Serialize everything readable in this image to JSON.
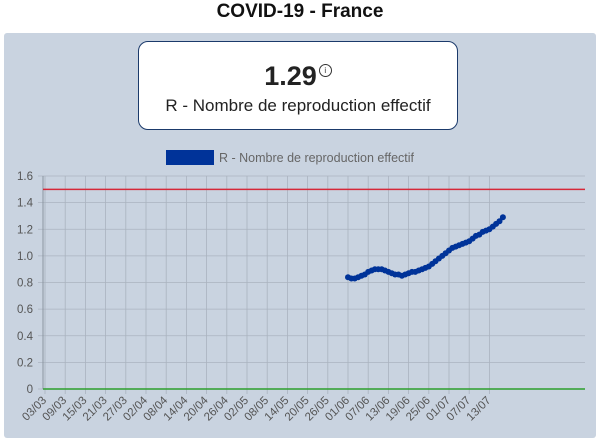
{
  "page": {
    "title": "COVID-19 - France"
  },
  "kpi": {
    "value": "1.29",
    "info_icon": "info-icon",
    "label": "R - Nombre de reproduction effectif"
  },
  "colors": {
    "panel_bg": "#c9d3e0",
    "series": "#003399",
    "threshold": "#d62839",
    "baseline": "#2ca02c",
    "grid": "#aab3bf"
  },
  "chart_data": {
    "type": "line",
    "title": "",
    "xlabel": "",
    "ylabel": "",
    "ylim": [
      0,
      1.6
    ],
    "yticks": [
      "0",
      "0.2",
      "0.4",
      "0.6",
      "0.8",
      "1.0",
      "1.2",
      "1.4",
      "1.6"
    ],
    "yticks_values": [
      0,
      0.2,
      0.4,
      0.6,
      0.8,
      1.0,
      1.2,
      1.4,
      1.6
    ],
    "xticks": [
      "03/03",
      "09/03",
      "15/03",
      "21/03",
      "27/03",
      "02/04",
      "08/04",
      "14/04",
      "20/04",
      "26/04",
      "02/05",
      "08/05",
      "14/05",
      "20/05",
      "26/05",
      "01/06",
      "07/06",
      "13/06",
      "19/06",
      "25/06",
      "01/07",
      "07/07",
      "13/07"
    ],
    "legend": "top",
    "grid": true,
    "reference_lines": [
      {
        "y": 1.5,
        "color": "#d62839"
      },
      {
        "y": 0,
        "color": "#2ca02c"
      }
    ],
    "series": [
      {
        "name": "R - Nombre de reproduction effectif",
        "color": "#003399",
        "x": [
          "01/06",
          "02/06",
          "03/06",
          "04/06",
          "05/06",
          "06/06",
          "07/06",
          "08/06",
          "09/06",
          "10/06",
          "11/06",
          "12/06",
          "13/06",
          "14/06",
          "15/06",
          "16/06",
          "17/06",
          "18/06",
          "19/06",
          "20/06",
          "21/06",
          "22/06",
          "23/06",
          "24/06",
          "25/06",
          "26/06",
          "27/06",
          "28/06",
          "29/06",
          "30/06",
          "01/07",
          "02/07",
          "03/07",
          "04/07",
          "05/07",
          "06/07",
          "07/07",
          "08/07",
          "09/07",
          "10/07",
          "11/07",
          "12/07",
          "13/07",
          "14/07",
          "15/07",
          "16/07",
          "17/07"
        ],
        "values": [
          0.84,
          0.83,
          0.83,
          0.84,
          0.85,
          0.86,
          0.88,
          0.89,
          0.9,
          0.9,
          0.9,
          0.89,
          0.88,
          0.87,
          0.86,
          0.86,
          0.85,
          0.86,
          0.87,
          0.88,
          0.88,
          0.89,
          0.9,
          0.91,
          0.92,
          0.94,
          0.96,
          0.98,
          1.0,
          1.02,
          1.04,
          1.06,
          1.07,
          1.08,
          1.09,
          1.1,
          1.11,
          1.13,
          1.15,
          1.16,
          1.18,
          1.19,
          1.2,
          1.22,
          1.24,
          1.26,
          1.29
        ]
      }
    ]
  }
}
